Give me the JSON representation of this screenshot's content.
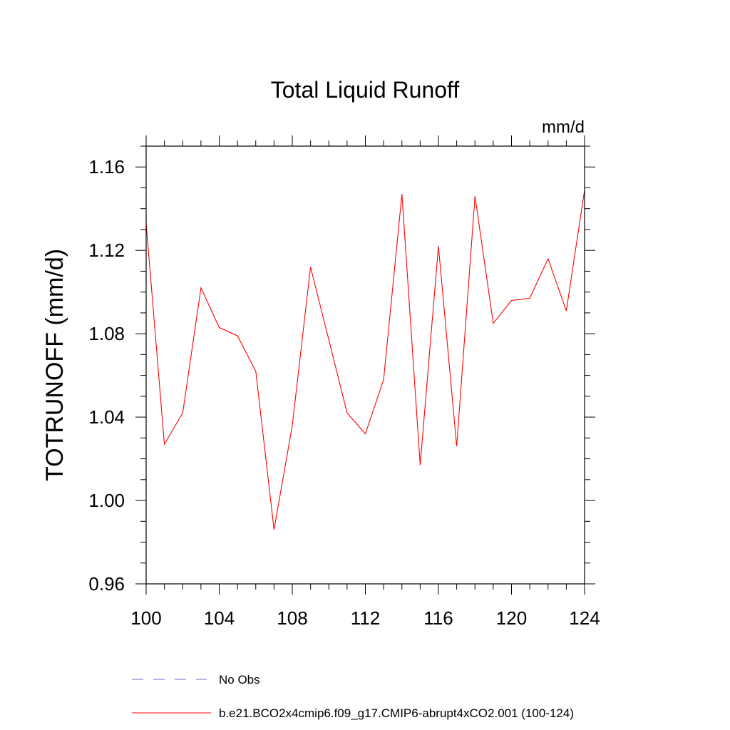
{
  "chart_data": {
    "type": "line",
    "title": "Total Liquid Runoff",
    "units_label": "mm/d",
    "ylabel": "TOTRUNOFF  (mm/d)",
    "xlabel": "",
    "xlim": [
      100,
      124
    ],
    "ylim": [
      0.96,
      1.17
    ],
    "x_ticks": [
      100,
      104,
      108,
      112,
      116,
      120,
      124
    ],
    "x_tick_labels": [
      "100",
      "104",
      "108",
      "112",
      "116",
      "120",
      "124"
    ],
    "y_ticks": [
      0.96,
      1.0,
      1.04,
      1.08,
      1.12,
      1.16
    ],
    "y_tick_labels": [
      "0.96",
      "1.00",
      "1.04",
      "1.08",
      "1.12",
      "1.16"
    ],
    "grid": false,
    "legend_position": "bottom",
    "series": [
      {
        "name": "b.e21.BCO2x4cmip6.f09_g17.CMIP6-abrupt4xCO2.001 (100-124)",
        "color": "#ff0000",
        "style": "solid",
        "x": [
          100,
          101,
          102,
          103,
          104,
          105,
          106,
          107,
          108,
          109,
          110,
          111,
          112,
          113,
          114,
          115,
          116,
          117,
          118,
          119,
          120,
          121,
          122,
          123,
          124
        ],
        "y": [
          1.133,
          1.027,
          1.042,
          1.102,
          1.083,
          1.079,
          1.062,
          0.986,
          1.036,
          1.112,
          1.077,
          1.042,
          1.032,
          1.058,
          1.147,
          1.017,
          1.122,
          1.026,
          1.146,
          1.085,
          1.096,
          1.097,
          1.116,
          1.091,
          1.149
        ]
      }
    ],
    "legend": [
      {
        "label": "No Obs",
        "color": "#6a6ad6",
        "style": "dashed"
      },
      {
        "label": "b.e21.BCO2x4cmip6.f09_g17.CMIP6-abrupt4xCO2.001 (100-124)",
        "color": "#ff0000",
        "style": "solid"
      }
    ]
  }
}
